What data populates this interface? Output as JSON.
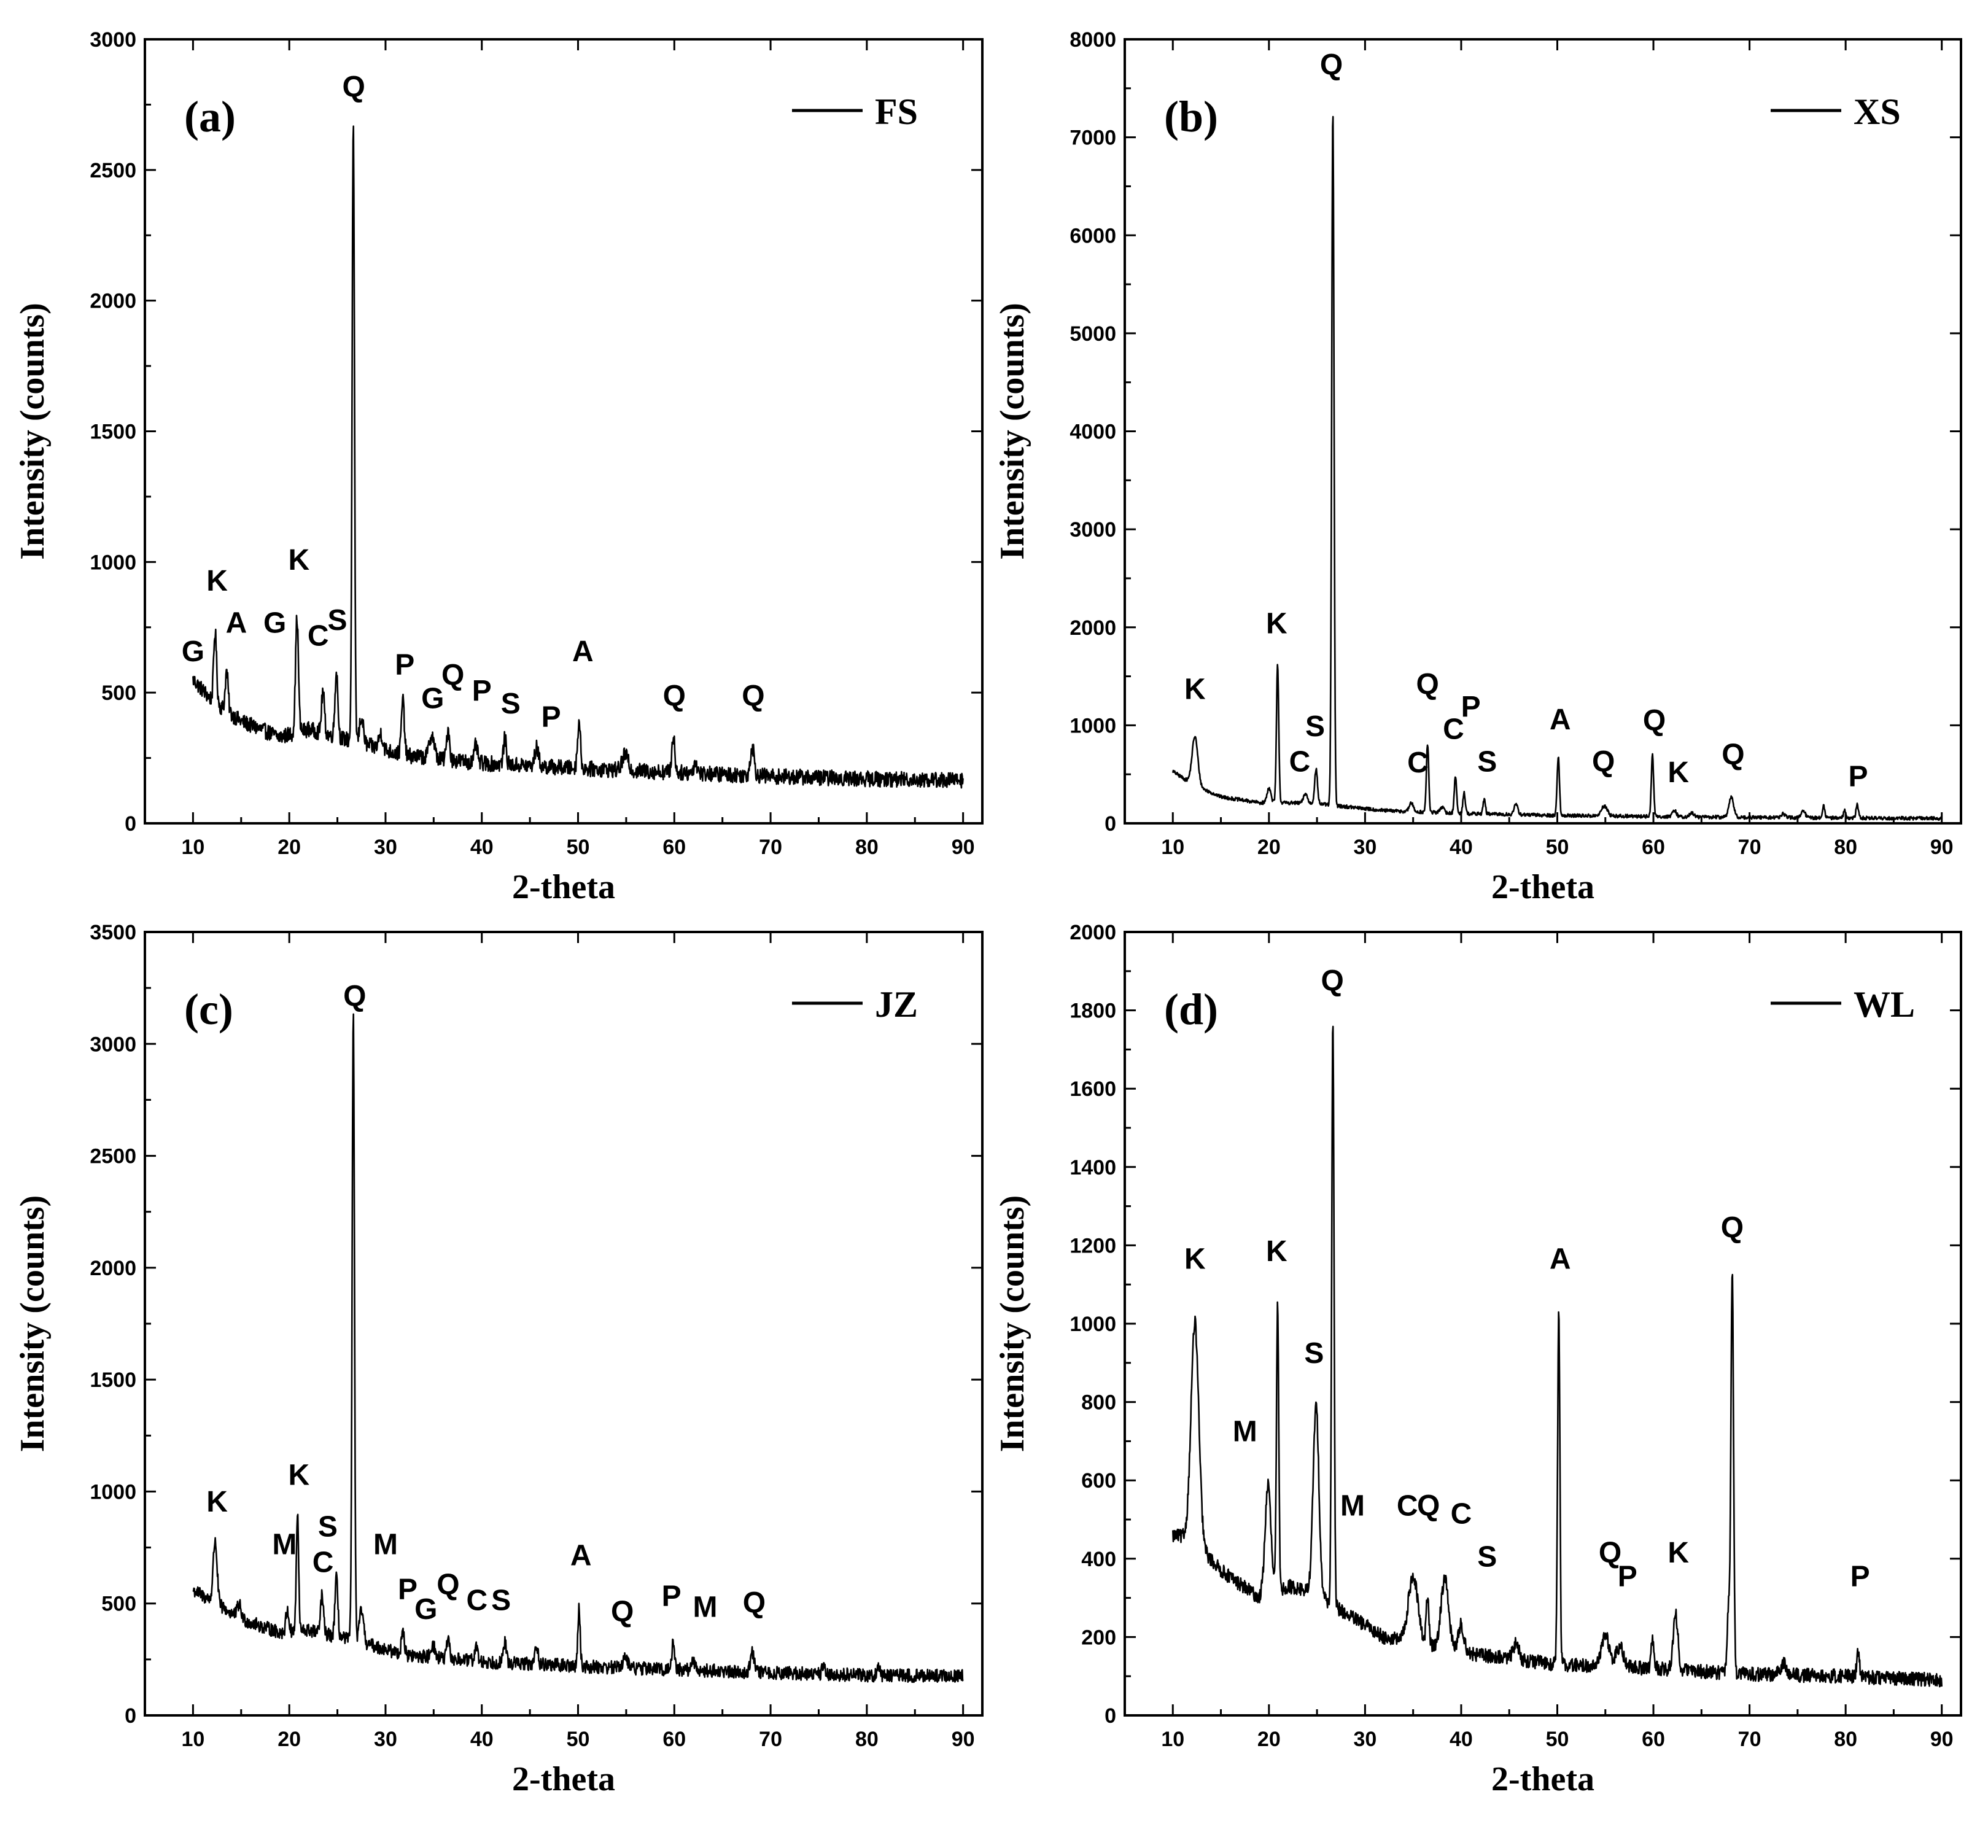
{
  "chart_data": [
    {
      "id": "a",
      "panel_label": "(a)",
      "legend": "FS",
      "type": "line",
      "xlabel": "2-theta",
      "ylabel": "Intensity (counts)",
      "xlim": [
        5,
        92
      ],
      "ylim": [
        0,
        3000
      ],
      "yticks": [
        0,
        500,
        1000,
        1500,
        2000,
        2500,
        3000
      ],
      "xticks": [
        10,
        20,
        30,
        40,
        50,
        60,
        70,
        80,
        90
      ],
      "baseline": [
        [
          10,
          550
        ],
        [
          12,
          470
        ],
        [
          15,
          390
        ],
        [
          19,
          330
        ],
        [
          22,
          360
        ],
        [
          25,
          330
        ],
        [
          28,
          300
        ],
        [
          32,
          260
        ],
        [
          40,
          230
        ],
        [
          50,
          210
        ],
        [
          60,
          195
        ],
        [
          70,
          180
        ],
        [
          80,
          170
        ],
        [
          90,
          165
        ]
      ],
      "noise": 30,
      "peaks": [
        [
          12.3,
          270,
          0.15
        ],
        [
          13.5,
          150,
          0.15
        ],
        [
          20.8,
          440,
          0.15
        ],
        [
          23.5,
          160,
          0.15
        ],
        [
          24.9,
          250,
          0.15
        ],
        [
          26.65,
          2360,
          0.12
        ],
        [
          27.5,
          100,
          0.2
        ],
        [
          29.5,
          60,
          0.2
        ],
        [
          31.8,
          210,
          0.15
        ],
        [
          34.8,
          90,
          0.25
        ],
        [
          36.5,
          120,
          0.15
        ],
        [
          39.4,
          70,
          0.15
        ],
        [
          42.4,
          100,
          0.15
        ],
        [
          45.7,
          70,
          0.2
        ],
        [
          50.1,
          180,
          0.15
        ],
        [
          54.9,
          60,
          0.3
        ],
        [
          59.9,
          140,
          0.15
        ],
        [
          62.2,
          40,
          0.2
        ],
        [
          68.1,
          110,
          0.2
        ]
      ],
      "labels": [
        [
          "G",
          10.0,
          620
        ],
        [
          "K",
          12.5,
          890
        ],
        [
          "A",
          14.5,
          730
        ],
        [
          "G",
          18.5,
          730
        ],
        [
          "C",
          23.0,
          680
        ],
        [
          "K",
          21.0,
          970
        ],
        [
          "S",
          25.0,
          740
        ],
        [
          "Q",
          26.7,
          2780
        ],
        [
          "P",
          32.0,
          570
        ],
        [
          "G",
          34.9,
          440
        ],
        [
          "Q",
          37.0,
          530
        ],
        [
          "P",
          40.0,
          470
        ],
        [
          "S",
          43.0,
          420
        ],
        [
          "P",
          47.2,
          370
        ],
        [
          "A",
          50.5,
          620
        ],
        [
          "Q",
          60.0,
          450
        ],
        [
          "Q",
          68.2,
          450
        ]
      ]
    },
    {
      "id": "b",
      "panel_label": "(b)",
      "legend": "XS",
      "type": "line",
      "xlabel": "2-theta",
      "ylabel": "Intensity (counts)",
      "xlim": [
        5,
        92
      ],
      "ylim": [
        0,
        8000
      ],
      "yticks": [
        0,
        1000,
        2000,
        3000,
        4000,
        5000,
        6000,
        7000,
        8000
      ],
      "xticks": [
        10,
        20,
        30,
        40,
        50,
        60,
        70,
        80,
        90
      ],
      "baseline": [
        [
          10,
          530
        ],
        [
          12,
          400
        ],
        [
          15,
          270
        ],
        [
          19,
          210
        ],
        [
          22,
          210
        ],
        [
          25,
          200
        ],
        [
          28,
          170
        ],
        [
          32,
          130
        ],
        [
          40,
          100
        ],
        [
          50,
          80
        ],
        [
          60,
          70
        ],
        [
          70,
          60
        ],
        [
          80,
          55
        ],
        [
          90,
          50
        ]
      ],
      "noise": 18,
      "peaks": [
        [
          12.3,
          500,
          0.3
        ],
        [
          20.0,
          150,
          0.2
        ],
        [
          20.9,
          1400,
          0.12
        ],
        [
          23.8,
          100,
          0.2
        ],
        [
          24.9,
          350,
          0.15
        ],
        [
          26.65,
          7100,
          0.12
        ],
        [
          34.8,
          90,
          0.2
        ],
        [
          36.5,
          700,
          0.12
        ],
        [
          38.0,
          60,
          0.2
        ],
        [
          39.4,
          380,
          0.12
        ],
        [
          40.3,
          220,
          0.12
        ],
        [
          42.4,
          150,
          0.12
        ],
        [
          45.7,
          100,
          0.2
        ],
        [
          50.1,
          600,
          0.12
        ],
        [
          54.9,
          100,
          0.3
        ],
        [
          59.9,
          630,
          0.12
        ],
        [
          62.2,
          60,
          0.2
        ],
        [
          64.0,
          40,
          0.2
        ],
        [
          68.1,
          200,
          0.25
        ],
        [
          73.5,
          40,
          0.2
        ],
        [
          75.6,
          70,
          0.2
        ],
        [
          77.7,
          130,
          0.12
        ],
        [
          79.9,
          80,
          0.12
        ],
        [
          81.2,
          140,
          0.12
        ]
      ],
      "labels": [
        [
          "K",
          12.3,
          1270
        ],
        [
          "K",
          20.8,
          1940
        ],
        [
          "C",
          23.2,
          530
        ],
        [
          "S",
          24.8,
          890
        ],
        [
          "Q",
          26.5,
          7640
        ],
        [
          "Q",
          36.5,
          1320
        ],
        [
          "C",
          35.5,
          520
        ],
        [
          "C",
          39.2,
          860
        ],
        [
          "P",
          41.0,
          1090
        ],
        [
          "S",
          42.7,
          530
        ],
        [
          "A",
          50.3,
          960
        ],
        [
          "Q",
          54.8,
          530
        ],
        [
          "Q",
          60.1,
          950
        ],
        [
          "K",
          62.6,
          420
        ],
        [
          "Q",
          68.3,
          600
        ],
        [
          "P",
          81.3,
          380
        ]
      ]
    },
    {
      "id": "c",
      "panel_label": "(c)",
      "legend": "JZ",
      "type": "line",
      "xlabel": "2-theta",
      "ylabel": "Intensity (counts)",
      "xlim": [
        5,
        92
      ],
      "ylim": [
        0,
        3500
      ],
      "yticks": [
        0,
        500,
        1000,
        1500,
        2000,
        2500,
        3000,
        3500
      ],
      "xticks": [
        10,
        20,
        30,
        40,
        50,
        60,
        70,
        80,
        90
      ],
      "baseline": [
        [
          10,
          560
        ],
        [
          12,
          510
        ],
        [
          15,
          430
        ],
        [
          19,
          370
        ],
        [
          22,
          380
        ],
        [
          25,
          350
        ],
        [
          28,
          320
        ],
        [
          32,
          270
        ],
        [
          40,
          240
        ],
        [
          50,
          220
        ],
        [
          60,
          205
        ],
        [
          70,
          190
        ],
        [
          80,
          180
        ],
        [
          90,
          175
        ]
      ],
      "noise": 30,
      "peaks": [
        [
          12.3,
          280,
          0.2
        ],
        [
          14.8,
          60,
          0.2
        ],
        [
          19.8,
          100,
          0.15
        ],
        [
          20.85,
          520,
          0.12
        ],
        [
          23.4,
          170,
          0.15
        ],
        [
          24.9,
          260,
          0.15
        ],
        [
          26.65,
          2800,
          0.12
        ],
        [
          27.5,
          150,
          0.2
        ],
        [
          31.8,
          110,
          0.15
        ],
        [
          34.9,
          60,
          0.2
        ],
        [
          36.5,
          80,
          0.15
        ],
        [
          39.4,
          70,
          0.15
        ],
        [
          42.4,
          90,
          0.15
        ],
        [
          45.7,
          90,
          0.15
        ],
        [
          50.1,
          260,
          0.12
        ],
        [
          54.9,
          40,
          0.3
        ],
        [
          59.9,
          120,
          0.15
        ],
        [
          62.0,
          40,
          0.2
        ],
        [
          68.1,
          90,
          0.2
        ],
        [
          75.5,
          40,
          0.15
        ],
        [
          81.2,
          40,
          0.15
        ]
      ],
      "labels": [
        [
          "K",
          12.5,
          910
        ],
        [
          "M",
          19.5,
          720
        ],
        [
          "K",
          21.0,
          1030
        ],
        [
          "S",
          24.0,
          800
        ],
        [
          "C",
          23.5,
          640
        ],
        [
          "M",
          30.0,
          720
        ],
        [
          "Q",
          26.8,
          3170
        ],
        [
          "P",
          32.3,
          520
        ],
        [
          "G",
          34.2,
          430
        ],
        [
          "Q",
          36.5,
          540
        ],
        [
          "C",
          39.5,
          470
        ],
        [
          "S",
          42.0,
          470
        ],
        [
          "A",
          50.3,
          670
        ],
        [
          "Q",
          54.6,
          420
        ],
        [
          "P",
          59.7,
          490
        ],
        [
          "M",
          63.2,
          440
        ],
        [
          "Q",
          68.3,
          460
        ]
      ]
    },
    {
      "id": "d",
      "panel_label": "(d)",
      "legend": "WL",
      "type": "line",
      "xlabel": "2-theta",
      "ylabel": "Intensity (counts)",
      "xlim": [
        5,
        92
      ],
      "ylim": [
        0,
        2000
      ],
      "yticks": [
        0,
        200,
        400,
        600,
        800,
        1000,
        1200,
        1400,
        1600,
        1800,
        2000
      ],
      "xticks": [
        10,
        20,
        30,
        40,
        50,
        60,
        70,
        80,
        90
      ],
      "baseline": [
        [
          10,
          460
        ],
        [
          12,
          450
        ],
        [
          15,
          370
        ],
        [
          19,
          300
        ],
        [
          22,
          330
        ],
        [
          25,
          310
        ],
        [
          28,
          260
        ],
        [
          32,
          200
        ],
        [
          40,
          160
        ],
        [
          50,
          130
        ],
        [
          60,
          120
        ],
        [
          70,
          105
        ],
        [
          80,
          100
        ],
        [
          90,
          90
        ]
      ],
      "noise": 18,
      "peaks": [
        [
          12.3,
          560,
          0.4
        ],
        [
          19.9,
          280,
          0.3
        ],
        [
          20.9,
          720,
          0.12
        ],
        [
          24.9,
          480,
          0.3
        ],
        [
          26.65,
          1490,
          0.12
        ],
        [
          35.0,
          170,
          0.5
        ],
        [
          36.5,
          120,
          0.15
        ],
        [
          38.3,
          180,
          0.4
        ],
        [
          40.0,
          70,
          0.3
        ],
        [
          45.7,
          40,
          0.3
        ],
        [
          50.15,
          900,
          0.12
        ],
        [
          55.0,
          80,
          0.4
        ],
        [
          56.5,
          50,
          0.4
        ],
        [
          59.9,
          80,
          0.15
        ],
        [
          62.3,
          140,
          0.25
        ],
        [
          67.8,
          160,
          0.12
        ],
        [
          68.2,
          1020,
          0.14
        ],
        [
          73.5,
          30,
          0.3
        ],
        [
          81.3,
          60,
          0.15
        ]
      ],
      "labels": [
        [
          "K",
          12.3,
          1140
        ],
        [
          "M",
          17.5,
          700
        ],
        [
          "K",
          20.8,
          1160
        ],
        [
          "S",
          24.7,
          900
        ],
        [
          "Q",
          26.6,
          1850
        ],
        [
          "M",
          28.7,
          510
        ],
        [
          "C",
          34.4,
          510
        ],
        [
          "Q",
          36.6,
          510
        ],
        [
          "C",
          40.0,
          490
        ],
        [
          "S",
          42.7,
          380
        ],
        [
          "A",
          50.3,
          1140
        ],
        [
          "Q",
          55.5,
          390
        ],
        [
          "P",
          57.3,
          330
        ],
        [
          "K",
          62.6,
          390
        ],
        [
          "Q",
          68.2,
          1220
        ],
        [
          "P",
          81.5,
          330
        ]
      ]
    }
  ]
}
